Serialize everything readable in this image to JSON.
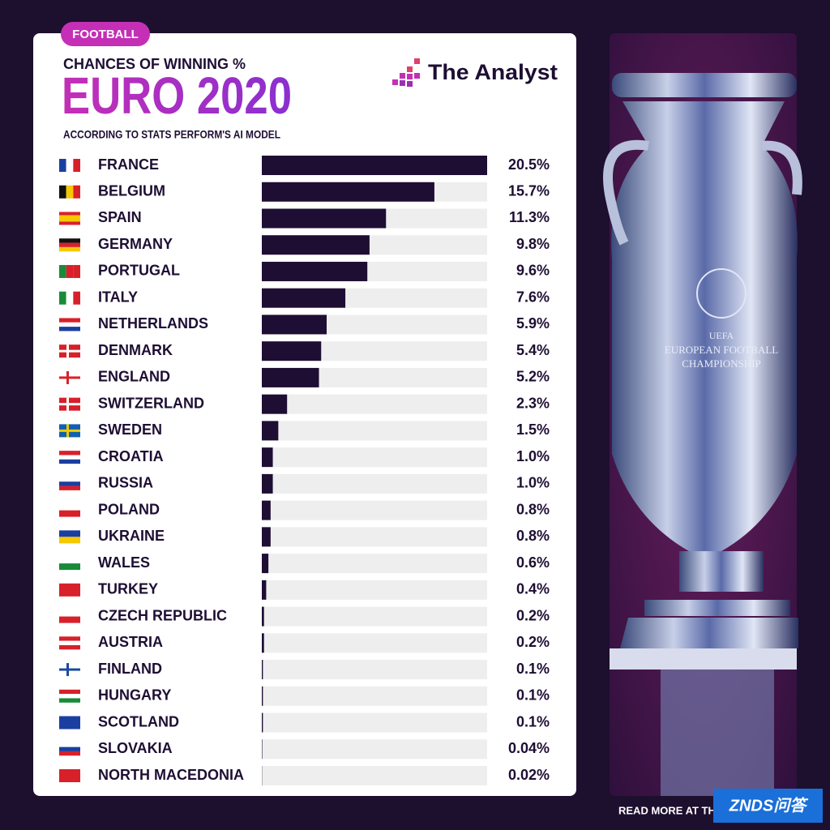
{
  "chart_data": {
    "type": "bar",
    "orientation": "horizontal",
    "tag": "FOOTBALL",
    "supertitle": "CHANCES OF WINNING %",
    "title": "EURO 2020",
    "subtitle": "ACCORDING TO STATS PERFORM'S AI MODEL",
    "categories": [
      "FRANCE",
      "BELGIUM",
      "SPAIN",
      "GERMANY",
      "PORTUGAL",
      "ITALY",
      "NETHERLANDS",
      "DENMARK",
      "ENGLAND",
      "SWITZERLAND",
      "SWEDEN",
      "CROATIA",
      "RUSSIA",
      "POLAND",
      "UKRAINE",
      "WALES",
      "TURKEY",
      "CZECH REPUBLIC",
      "AUSTRIA",
      "FINLAND",
      "HUNGARY",
      "SCOTLAND",
      "SLOVAKIA",
      "NORTH MACEDONIA"
    ],
    "values": [
      20.5,
      15.7,
      11.3,
      9.8,
      9.6,
      7.6,
      5.9,
      5.4,
      5.2,
      2.3,
      1.5,
      1.0,
      1.0,
      0.8,
      0.8,
      0.6,
      0.4,
      0.2,
      0.2,
      0.1,
      0.1,
      0.1,
      0.04,
      0.02
    ],
    "value_labels": [
      "20.5%",
      "15.7%",
      "11.3%",
      "9.8%",
      "9.6%",
      "7.6%",
      "5.9%",
      "5.4%",
      "5.2%",
      "2.3%",
      "1.5%",
      "1.0%",
      "1.0%",
      "0.8%",
      "0.8%",
      "0.6%",
      "0.4%",
      "0.2%",
      "0.2%",
      "0.1%",
      "0.1%",
      "0.1%",
      "0.04%",
      "0.02%"
    ],
    "color": "#1e0e33",
    "xlim": [
      0,
      20.5
    ]
  },
  "brand": "The Analyst",
  "trophy_text": [
    "UEFA",
    "EUROPEAN FOOTBALL",
    "CHAMPIONSHIP"
  ],
  "footer": "READ MORE AT TH",
  "watermark": "ZNDS问答"
}
